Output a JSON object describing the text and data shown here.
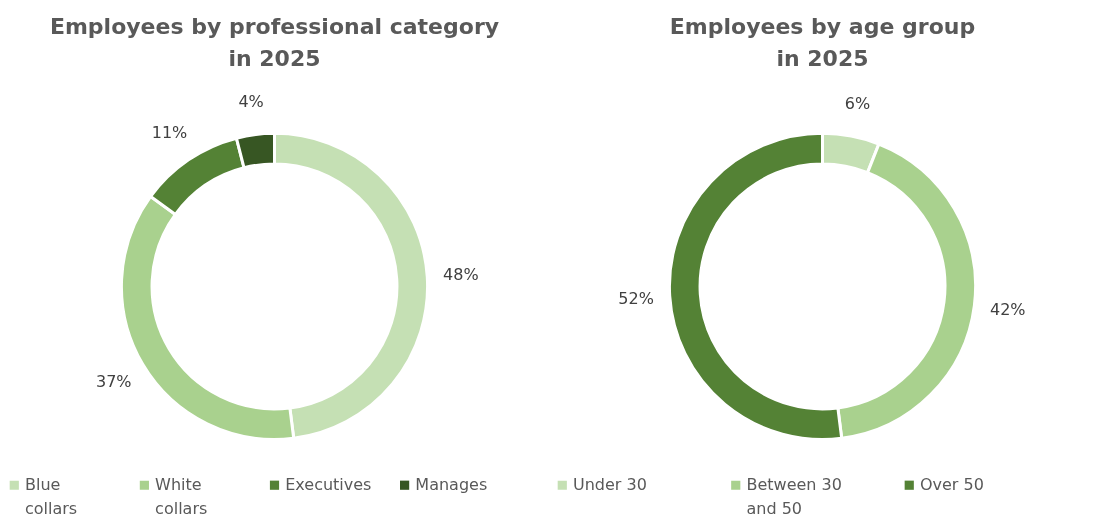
{
  "chart_data": [
    {
      "type": "donut",
      "title": "Employees by professional category in 2025",
      "categories": [
        "Blue collars",
        "White collars",
        "Executives",
        "Manages"
      ],
      "values": [
        48,
        37,
        11,
        4
      ],
      "colors": [
        "#c5e0b4",
        "#a9d18e",
        "#548235",
        "#375623"
      ],
      "legend": "bottom",
      "value_labels": [
        "48%",
        "37%",
        "11%",
        "4%"
      ]
    },
    {
      "type": "donut",
      "title": "Employees by age group in 2025",
      "categories": [
        "Under 30",
        "Between 30 and 50",
        "Over 50"
      ],
      "values": [
        6,
        42,
        52
      ],
      "colors": [
        "#c5e0b4",
        "#a9d18e",
        "#548235"
      ],
      "legend": "bottom",
      "value_labels": [
        "6%",
        "42%",
        "52%"
      ]
    }
  ]
}
